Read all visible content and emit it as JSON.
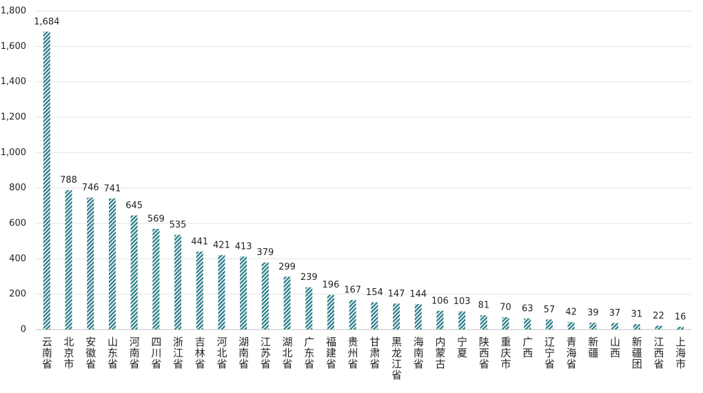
{
  "chart_data": {
    "type": "bar",
    "categories": [
      "云南省",
      "北京市",
      "安徽省",
      "山东省",
      "河南省",
      "四川省",
      "浙江省",
      "吉林省",
      "河北省",
      "湖南省",
      "江苏省",
      "湖北省",
      "广东省",
      "福建省",
      "贵州省",
      "甘肃省",
      "黑龙江省",
      "海南省",
      "内蒙古",
      "宁夏",
      "陕西省",
      "重庆市",
      "广西",
      "辽宁省",
      "青海省",
      "新疆",
      "山西",
      "新疆团",
      "江西省",
      "上海市"
    ],
    "values": [
      1684,
      788,
      746,
      741,
      645,
      569,
      535,
      441,
      421,
      413,
      379,
      299,
      239,
      196,
      167,
      154,
      147,
      144,
      106,
      103,
      81,
      70,
      63,
      57,
      42,
      39,
      37,
      31,
      22,
      16
    ],
    "value_labels": [
      "1,684",
      "788",
      "746",
      "741",
      "645",
      "569",
      "535",
      "441",
      "421",
      "413",
      "379",
      "299",
      "239",
      "196",
      "167",
      "154",
      "147",
      "144",
      "106",
      "103",
      "81",
      "70",
      "63",
      "57",
      "42",
      "39",
      "37",
      "31",
      "22",
      "16"
    ],
    "color": "#2f7f8c",
    "ylim": [
      0,
      1800
    ],
    "yticks": [
      0,
      200,
      400,
      600,
      800,
      {
        "value": 1000,
        "label": "1,000"
      },
      {
        "value": 1200,
        "label": "1,200"
      },
      {
        "value": 1400,
        "label": "1,400"
      },
      {
        "value": 1600,
        "label": "1,600"
      },
      {
        "value": 1800,
        "label": "1,800"
      }
    ],
    "grid": true
  }
}
